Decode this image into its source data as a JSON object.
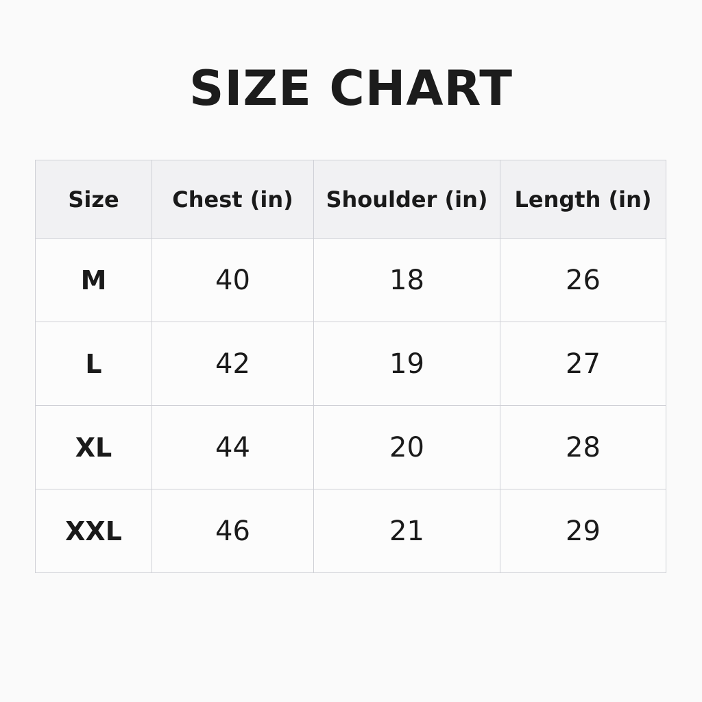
{
  "title": "SIZE CHART",
  "table": {
    "headers": [
      "Size",
      "Chest (in)",
      "Shoulder (in)",
      "Length (in)"
    ],
    "rows": [
      [
        "M",
        "40",
        "18",
        "26"
      ],
      [
        "L",
        "42",
        "19",
        "27"
      ],
      [
        "XL",
        "44",
        "20",
        "28"
      ],
      [
        "XXL",
        "46",
        "21",
        "29"
      ]
    ]
  }
}
